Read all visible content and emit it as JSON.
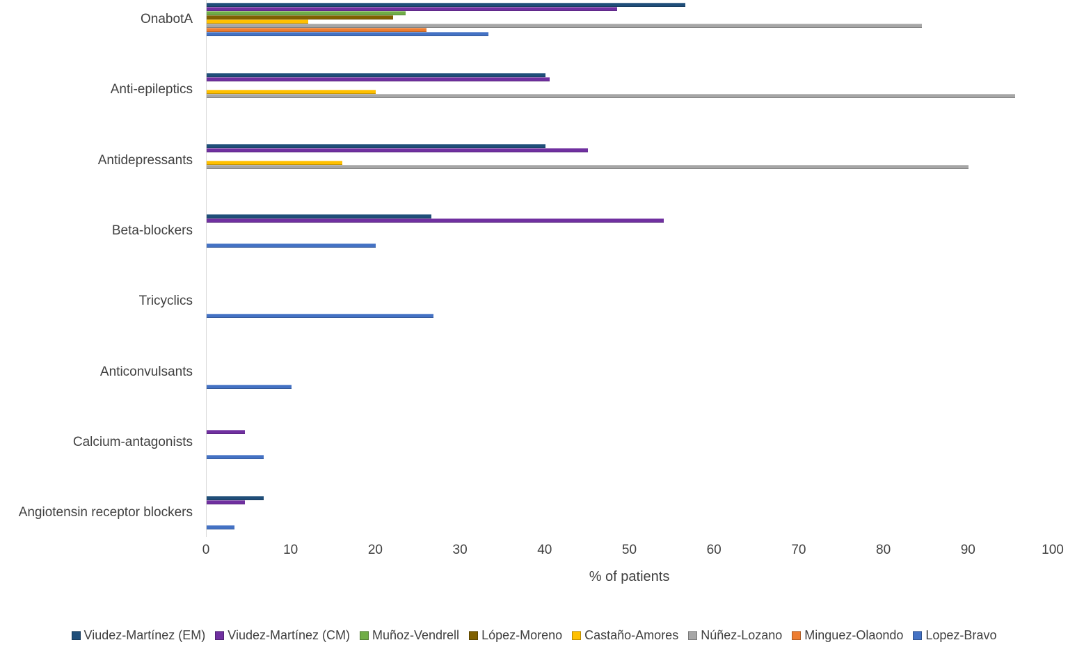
{
  "chart_data": {
    "type": "bar",
    "orientation": "horizontal",
    "title": "",
    "xlabel": "% of patients",
    "ylabel": "",
    "xlim": [
      0,
      100
    ],
    "x_ticks": [
      0,
      10,
      20,
      30,
      40,
      50,
      60,
      70,
      80,
      90,
      100
    ],
    "grid": false,
    "legend_position": "bottom",
    "categories": [
      "OnabotA",
      "Anti-epileptics",
      "Antidepressants",
      "Beta-blockers",
      "Tricyclics",
      "Anticonvulsants",
      "Calcium-antagonists",
      "Angiotensin receptor blockers"
    ],
    "series": [
      {
        "name": "Viudez-Martínez (EM)",
        "color": "#1F4E79",
        "values": [
          56.5,
          40,
          40,
          26.5,
          null,
          null,
          null,
          6.7
        ]
      },
      {
        "name": "Viudez-Martínez (CM)",
        "color": "#7030A0",
        "values": [
          48.5,
          40.5,
          45,
          54,
          null,
          null,
          4.5,
          4.5
        ]
      },
      {
        "name": "Muñoz-Vendrell",
        "color": "#70AD47",
        "values": [
          23.5,
          null,
          null,
          null,
          null,
          null,
          null,
          null
        ]
      },
      {
        "name": "López-Moreno",
        "color": "#7F6000",
        "values": [
          22,
          null,
          null,
          null,
          null,
          null,
          null,
          null
        ]
      },
      {
        "name": "Castaño-Amores",
        "color": "#FFC000",
        "values": [
          12,
          20,
          16,
          null,
          null,
          null,
          null,
          null
        ]
      },
      {
        "name": "Núñez-Lozano",
        "color": "#A6A6A6",
        "values": [
          84.5,
          95.5,
          90,
          null,
          null,
          null,
          null,
          null
        ]
      },
      {
        "name": "Minguez-Olaondo",
        "color": "#ED7D31",
        "values": [
          26,
          null,
          null,
          null,
          null,
          null,
          null,
          null
        ]
      },
      {
        "name": "Lopez-Bravo",
        "color": "#4472C4",
        "values": [
          33.3,
          null,
          null,
          20,
          26.8,
          10,
          6.7,
          3.3
        ]
      }
    ]
  }
}
